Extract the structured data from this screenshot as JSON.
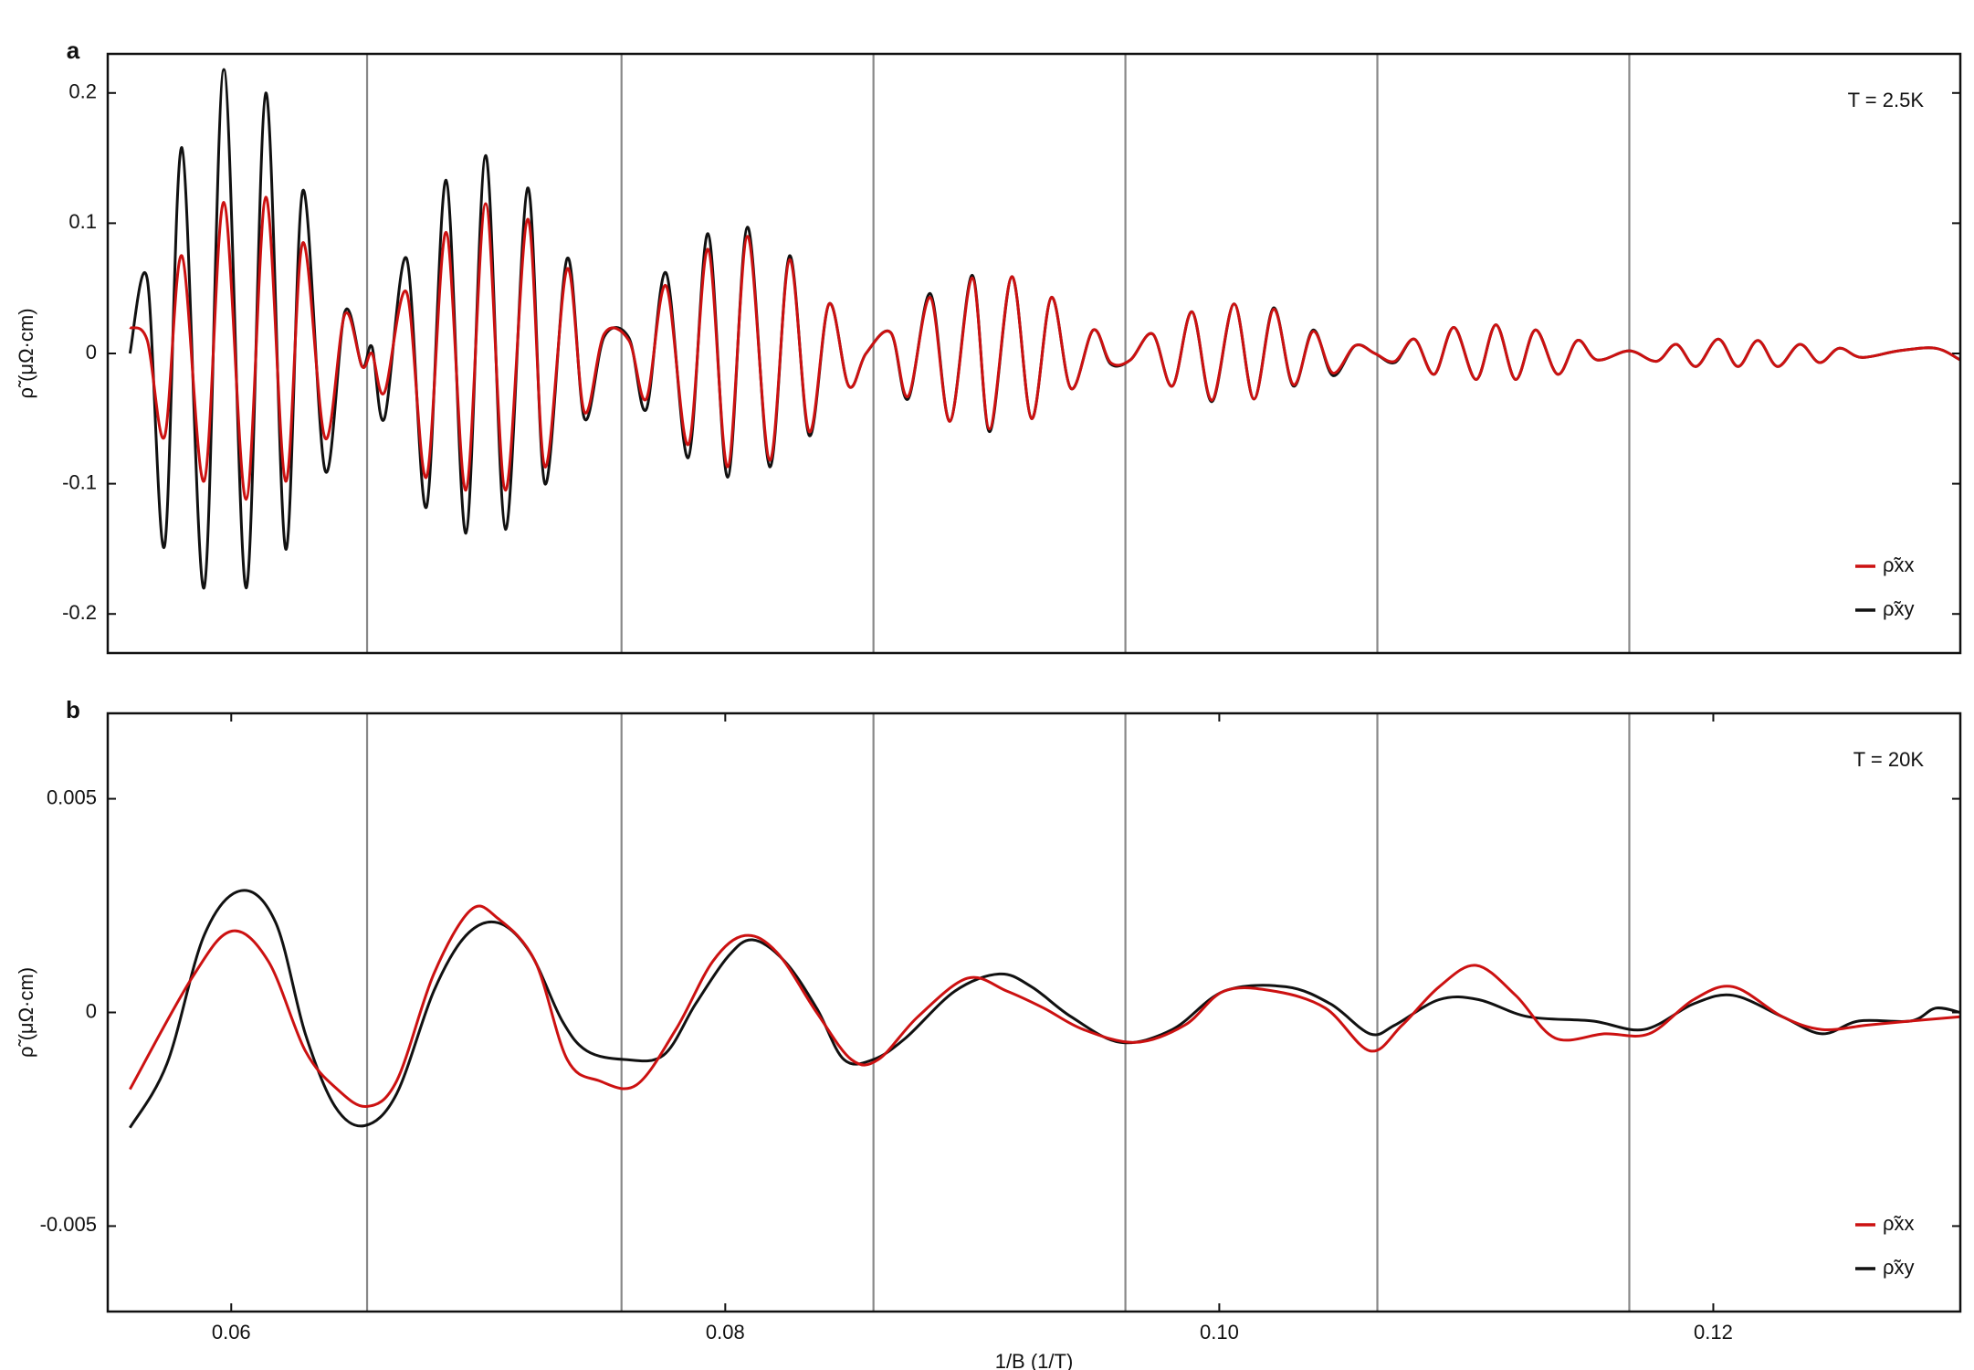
{
  "chart_data": [
    {
      "type": "line",
      "panel_label": "a",
      "annotation": "T = 2.5K",
      "ylabel": "ρ̃ (μΩ·cm)",
      "xlim": [
        0.055,
        0.13
      ],
      "ylim": [
        -0.23,
        0.23
      ],
      "yticks": [
        -0.2,
        -0.1,
        0,
        0.1,
        0.2
      ],
      "vlines": [
        0.0655,
        0.0758,
        0.086,
        0.0962,
        0.1064,
        0.1166
      ],
      "legend": "lower right",
      "series": [
        {
          "name": "ρ̃xx",
          "color": "#cc1111",
          "x": [
            0.0559,
            0.0566,
            0.0573,
            0.058,
            0.0589,
            0.0597,
            0.0606,
            0.0614,
            0.0622,
            0.0629,
            0.0638,
            0.0646,
            0.0653,
            0.0657,
            0.0662,
            0.0671,
            0.0679,
            0.0687,
            0.0695,
            0.0703,
            0.0711,
            0.072,
            0.0727,
            0.0736,
            0.0743,
            0.0751,
            0.0761,
            0.0768,
            0.0776,
            0.0785,
            0.0793,
            0.0801,
            0.0809,
            0.0818,
            0.0826,
            0.0834,
            0.0842,
            0.085,
            0.0857,
            0.0867,
            0.0874,
            0.0883,
            0.0891,
            0.09,
            0.0907,
            0.0916,
            0.0924,
            0.0932,
            0.094,
            0.0949,
            0.0956,
            0.0964,
            0.0973,
            0.0981,
            0.0989,
            0.0997,
            0.1006,
            0.1014,
            0.1022,
            0.103,
            0.1038,
            0.1046,
            0.1055,
            0.1063,
            0.1071,
            0.1079,
            0.1087,
            0.1095,
            0.1104,
            0.1112,
            0.112,
            0.1128,
            0.1137,
            0.1145,
            0.1153,
            0.1166,
            0.1177,
            0.1185,
            0.1193,
            0.1202,
            0.121,
            0.1218,
            0.1226,
            0.1235,
            0.1243,
            0.1251,
            0.126,
            0.1275,
            0.129,
            0.13
          ],
          "values": [
            0.02,
            0.01,
            -0.064,
            0.075,
            -0.098,
            0.116,
            -0.112,
            0.12,
            -0.098,
            0.085,
            -0.065,
            0.03,
            -0.01,
            0.0,
            -0.03,
            0.047,
            -0.095,
            0.093,
            -0.105,
            0.115,
            -0.105,
            0.103,
            -0.087,
            0.065,
            -0.045,
            0.015,
            0.01,
            -0.035,
            0.052,
            -0.07,
            0.08,
            -0.087,
            0.09,
            -0.082,
            0.072,
            -0.06,
            0.038,
            -0.025,
            0.0,
            0.016,
            -0.033,
            0.043,
            -0.052,
            0.058,
            -0.058,
            0.059,
            -0.05,
            0.043,
            -0.027,
            0.018,
            -0.007,
            -0.005,
            0.015,
            -0.025,
            0.032,
            -0.036,
            0.038,
            -0.035,
            0.034,
            -0.024,
            0.017,
            -0.015,
            0.006,
            0.0,
            -0.006,
            0.011,
            -0.016,
            0.02,
            -0.02,
            0.022,
            -0.02,
            0.018,
            -0.016,
            0.01,
            -0.005,
            0.002,
            -0.006,
            0.007,
            -0.01,
            0.011,
            -0.01,
            0.01,
            -0.01,
            0.007,
            -0.007,
            0.004,
            -0.003,
            0.002,
            0.004,
            -0.005
          ]
        },
        {
          "name": "ρ̃xy",
          "color": "#111111",
          "x": [
            0.0559,
            0.0566,
            0.0573,
            0.058,
            0.0589,
            0.0597,
            0.0606,
            0.0614,
            0.0622,
            0.0629,
            0.0638,
            0.0646,
            0.0653,
            0.0657,
            0.0662,
            0.0671,
            0.0679,
            0.0687,
            0.0695,
            0.0703,
            0.0711,
            0.072,
            0.0727,
            0.0736,
            0.0743,
            0.0751,
            0.0761,
            0.0768,
            0.0776,
            0.0785,
            0.0793,
            0.0801,
            0.0809,
            0.0818,
            0.0826,
            0.0834,
            0.0842,
            0.085,
            0.0857,
            0.0867,
            0.0874,
            0.0883,
            0.0891,
            0.09,
            0.0907,
            0.0916,
            0.0924,
            0.0932,
            0.094,
            0.0949,
            0.0956,
            0.0964,
            0.0973,
            0.0981,
            0.0989,
            0.0997,
            0.1006,
            0.1014,
            0.1022,
            0.103,
            0.1038,
            0.1046,
            0.1055,
            0.1063,
            0.1071,
            0.1079,
            0.1087,
            0.1095,
            0.1104,
            0.1112,
            0.112,
            0.1128,
            0.1137,
            0.1145,
            0.1153,
            0.1166,
            0.1177,
            0.1185,
            0.1193,
            0.1202,
            0.121,
            0.1218,
            0.1226,
            0.1235,
            0.1243,
            0.1251,
            0.126,
            0.1275,
            0.129,
            0.13
          ],
          "values": [
            0,
            0.057,
            -0.148,
            0.158,
            -0.18,
            0.218,
            -0.18,
            0.2,
            -0.15,
            0.125,
            -0.09,
            0.032,
            -0.01,
            0.005,
            -0.05,
            0.073,
            -0.118,
            0.133,
            -0.138,
            0.152,
            -0.135,
            0.127,
            -0.1,
            0.073,
            -0.05,
            0.013,
            0.012,
            -0.043,
            0.062,
            -0.08,
            0.092,
            -0.095,
            0.097,
            -0.087,
            0.075,
            -0.063,
            0.038,
            -0.025,
            0.0,
            0.016,
            -0.035,
            0.046,
            -0.052,
            0.06,
            -0.06,
            0.059,
            -0.05,
            0.043,
            -0.027,
            0.018,
            -0.008,
            -0.005,
            0.015,
            -0.025,
            0.032,
            -0.037,
            0.038,
            -0.035,
            0.035,
            -0.025,
            0.018,
            -0.017,
            0.006,
            0.0,
            -0.007,
            0.011,
            -0.016,
            0.02,
            -0.02,
            0.022,
            -0.02,
            0.018,
            -0.016,
            0.01,
            -0.005,
            0.002,
            -0.006,
            0.007,
            -0.01,
            0.011,
            -0.01,
            0.01,
            -0.01,
            0.007,
            -0.007,
            0.004,
            -0.003,
            0.002,
            0.004,
            -0.005
          ]
        }
      ]
    },
    {
      "type": "line",
      "panel_label": "b",
      "annotation": "T = 20K",
      "ylabel": "ρ̃ (μΩ·cm)",
      "xlabel": "1/B (1/T)",
      "xlim": [
        0.055,
        0.13
      ],
      "xticks": [
        0.06,
        0.08,
        {
          "value": 0.1,
          "label": "0.10"
        },
        0.12
      ],
      "ylim": [
        -0.007,
        0.007
      ],
      "yticks": [
        -0.005,
        0,
        0.005
      ],
      "vlines": [
        0.0655,
        0.0758,
        0.086,
        0.0962,
        0.1064,
        0.1166
      ],
      "legend": "lower right",
      "series": [
        {
          "name": "ρ̃xx",
          "color": "#cc1111",
          "x": [
            0.0559,
            0.0584,
            0.06,
            0.0615,
            0.063,
            0.0643,
            0.0655,
            0.0667,
            0.0682,
            0.0697,
            0.0708,
            0.0723,
            0.0736,
            0.0749,
            0.0764,
            0.078,
            0.0795,
            0.0808,
            0.0821,
            0.0837,
            0.0851,
            0.0862,
            0.0878,
            0.0898,
            0.0914,
            0.0929,
            0.0945,
            0.0966,
            0.0986,
            0.1002,
            0.1022,
            0.1043,
            0.1061,
            0.1074,
            0.1089,
            0.1104,
            0.112,
            0.1136,
            0.1156,
            0.1174,
            0.1192,
            0.1208,
            0.1228,
            0.1244,
            0.1262,
            0.128,
            0.13
          ],
          "values": [
            -0.0018,
            0.0008,
            0.0019,
            0.0012,
            -0.0009,
            -0.0018,
            -0.0022,
            -0.0016,
            0.0009,
            0.0024,
            0.0022,
            0.0012,
            -0.0011,
            -0.0016,
            -0.0017,
            -0.0004,
            0.0012,
            0.0018,
            0.0014,
            0.0,
            -0.0011,
            -0.0011,
            -0.0001,
            0.0008,
            0.0005,
            0.0001,
            -0.0004,
            -0.0007,
            -0.0003,
            0.0005,
            0.0005,
            0.0001,
            -0.0009,
            -0.0003,
            0.0006,
            0.0011,
            0.0004,
            -0.0006,
            -0.0005,
            -0.0005,
            0.0003,
            0.0006,
            -0.0001,
            -0.0004,
            -0.0003,
            -0.0002,
            -0.0001
          ]
        },
        {
          "name": "ρ̃xy",
          "color": "#111111",
          "x": [
            0.0559,
            0.0574,
            0.0589,
            0.0604,
            0.0618,
            0.063,
            0.0642,
            0.0654,
            0.0667,
            0.0682,
            0.0695,
            0.0708,
            0.0721,
            0.0734,
            0.0744,
            0.0759,
            0.0775,
            0.0788,
            0.0801,
            0.0811,
            0.0824,
            0.0837,
            0.0848,
            0.086,
            0.0873,
            0.0893,
            0.0911,
            0.0924,
            0.094,
            0.096,
            0.0981,
            0.1002,
            0.1027,
            0.1045,
            0.1061,
            0.1071,
            0.1089,
            0.1105,
            0.1125,
            0.1151,
            0.1172,
            0.1192,
            0.1208,
            0.1228,
            0.1244,
            0.1259,
            0.128,
            0.129,
            0.13
          ],
          "values": [
            -0.0027,
            -0.0012,
            0.0018,
            0.00285,
            0.0021,
            -0.0005,
            -0.0022,
            -0.00265,
            -0.0019,
            0.0005,
            0.0018,
            0.0021,
            0.0014,
            -0.0002,
            -0.0009,
            -0.0011,
            -0.001,
            0.0002,
            0.0013,
            0.0017,
            0.0012,
            0.0001,
            -0.0011,
            -0.0011,
            -0.0006,
            0.0005,
            0.0009,
            0.0006,
            -0.0001,
            -0.0007,
            -0.0004,
            0.0005,
            0.0006,
            0.0002,
            -0.0005,
            -0.0003,
            0.0003,
            0.0003,
            -0.0001,
            -0.0002,
            -0.0004,
            0.0002,
            0.0004,
            -0.0001,
            -0.0005,
            -0.0002,
            -0.0002,
            0.0001,
            0.0
          ]
        }
      ]
    }
  ]
}
